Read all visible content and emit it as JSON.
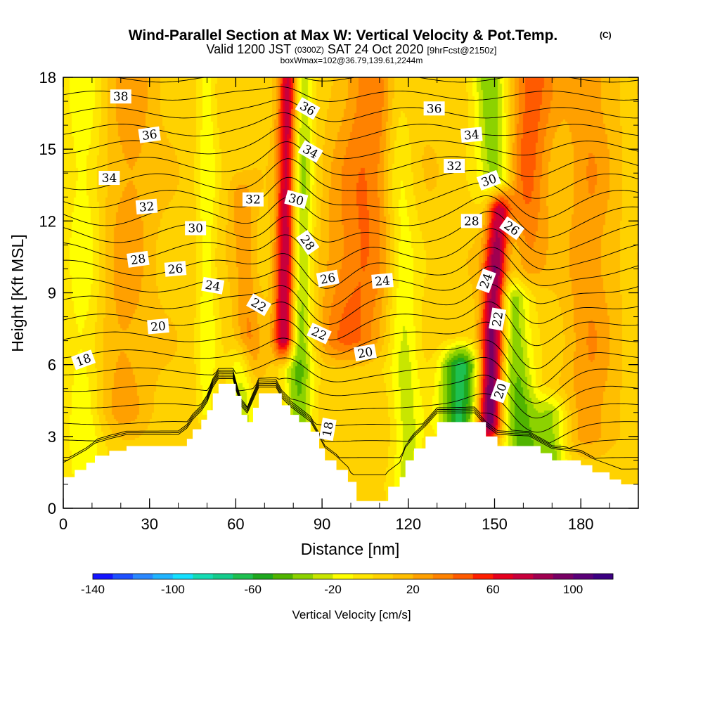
{
  "header": {
    "title": "Wind-Parallel Section at Max W: Vertical Velocity & Pot.Temp.",
    "title_suffix": "(C)",
    "valid_prefix": "Valid 1200 JST",
    "valid_utc": "(0300Z)",
    "valid_date": "SAT 24 Oct 2020",
    "forecast": "[9hrFcst@2150z]",
    "boxwmax": "boxWmax=102@36.79,139.61,2244m"
  },
  "chart_data": {
    "type": "heatmap",
    "title": "Wind-Parallel Section at Max W: Vertical Velocity & Pot.Temp.",
    "xlabel": "Distance [nm]",
    "ylabel": "Height [Kft MSL]",
    "xlim": [
      0,
      200
    ],
    "ylim": [
      0,
      18
    ],
    "x_ticks": [
      0,
      30,
      60,
      90,
      120,
      150,
      180
    ],
    "y_ticks": [
      0,
      3,
      6,
      9,
      12,
      15,
      18
    ],
    "colorbar": {
      "label": "Vertical Velocity [cm/s]",
      "range": [
        -140,
        120
      ],
      "step": 10,
      "tick_values": [
        -140,
        -100,
        -60,
        -20,
        20,
        60,
        100
      ],
      "colors": [
        "#1414ff",
        "#1e50ff",
        "#2a88ff",
        "#20b4ff",
        "#14e0ff",
        "#14dcb4",
        "#14cc8c",
        "#1ec050",
        "#1ea81e",
        "#50b400",
        "#8cd200",
        "#c8e600",
        "#ffff00",
        "#ffe600",
        "#ffd200",
        "#ffbe00",
        "#ffa000",
        "#ff8200",
        "#ff5a00",
        "#ff1e00",
        "#e6001e",
        "#c8003c",
        "#a00050",
        "#780064",
        "#5a0078",
        "#3c0082"
      ]
    },
    "terrain": [
      {
        "x": 0,
        "h": 1.3
      },
      {
        "x": 4,
        "h": 1.6
      },
      {
        "x": 8,
        "h": 1.9
      },
      {
        "x": 11,
        "h": 2.2
      },
      {
        "x": 16,
        "h": 2.4
      },
      {
        "x": 22,
        "h": 2.6
      },
      {
        "x": 40,
        "h": 2.6
      },
      {
        "x": 43,
        "h": 2.9
      },
      {
        "x": 45,
        "h": 3.3
      },
      {
        "x": 48,
        "h": 3.7
      },
      {
        "x": 50,
        "h": 4.1
      },
      {
        "x": 52,
        "h": 4.8
      },
      {
        "x": 54,
        "h": 5.2
      },
      {
        "x": 59,
        "h": 5.2
      },
      {
        "x": 60,
        "h": 4.7
      },
      {
        "x": 62,
        "h": 3.9
      },
      {
        "x": 64,
        "h": 3.6
      },
      {
        "x": 66,
        "h": 4.2
      },
      {
        "x": 68,
        "h": 4.8
      },
      {
        "x": 74,
        "h": 4.8
      },
      {
        "x": 76,
        "h": 4.3
      },
      {
        "x": 79,
        "h": 3.9
      },
      {
        "x": 82,
        "h": 3.6
      },
      {
        "x": 86,
        "h": 3.2
      },
      {
        "x": 89,
        "h": 2.5
      },
      {
        "x": 91,
        "h": 2.0
      },
      {
        "x": 95,
        "h": 1.6
      },
      {
        "x": 99,
        "h": 1.1
      },
      {
        "x": 102,
        "h": 0.3
      },
      {
        "x": 110,
        "h": 0.3
      },
      {
        "x": 113,
        "h": 0.9
      },
      {
        "x": 117,
        "h": 1.3
      },
      {
        "x": 119,
        "h": 2.0
      },
      {
        "x": 122,
        "h": 2.5
      },
      {
        "x": 126,
        "h": 3.0
      },
      {
        "x": 130,
        "h": 3.6
      },
      {
        "x": 143,
        "h": 3.6
      },
      {
        "x": 147,
        "h": 3.0
      },
      {
        "x": 151,
        "h": 2.6
      },
      {
        "x": 162,
        "h": 2.6
      },
      {
        "x": 166,
        "h": 2.3
      },
      {
        "x": 170,
        "h": 2.0
      },
      {
        "x": 180,
        "h": 1.8
      },
      {
        "x": 184,
        "h": 1.5
      },
      {
        "x": 190,
        "h": 1.2
      },
      {
        "x": 194,
        "h": 1.0
      },
      {
        "x": 200,
        "h": 1.0
      }
    ],
    "updrafts": [
      {
        "x": 77,
        "h0": 7,
        "h1": 18,
        "tilt": 1.5,
        "width": 2.5,
        "peak": 90
      },
      {
        "x": 148,
        "h0": 3.5,
        "h1": 12.5,
        "tilt": 3.5,
        "width": 3.0,
        "peak": 102
      },
      {
        "x": 158,
        "h0": 10,
        "h1": 18,
        "tilt": 5.0,
        "width": 6.0,
        "peak": 40
      },
      {
        "x": 100,
        "h0": 7,
        "h1": 18,
        "tilt": 10,
        "width": 9.0,
        "peak": 35
      },
      {
        "x": 20,
        "h0": 4,
        "h1": 18,
        "tilt": 4,
        "width": 7.0,
        "peak": 18
      },
      {
        "x": 183,
        "h0": 3,
        "h1": 18,
        "tilt": 0,
        "width": 6.0,
        "peak": 22
      },
      {
        "x": 65,
        "h0": 6,
        "h1": 13,
        "tilt": -3,
        "width": 3.0,
        "peak": 22
      }
    ],
    "downdrafts": [
      {
        "x": 82,
        "h0": 3,
        "h1": 18,
        "tilt": 0,
        "width": 3.5,
        "peak": -48
      },
      {
        "x": 138,
        "h0": 3.5,
        "h1": 6,
        "tilt": 0,
        "width": 5.0,
        "peak": -70
      },
      {
        "x": 160,
        "h0": 2.5,
        "h1": 18,
        "tilt": -12,
        "width": 4.5,
        "peak": -48
      },
      {
        "x": 120,
        "h0": 1,
        "h1": 18,
        "tilt": -4,
        "width": 4.0,
        "peak": -30
      },
      {
        "x": 7,
        "h0": 0,
        "h1": 18,
        "tilt": 0,
        "width": 5.0,
        "peak": -22
      },
      {
        "x": 170,
        "h0": 1,
        "h1": 4,
        "tilt": 0,
        "width": 4.0,
        "peak": -40
      },
      {
        "x": 62,
        "h0": 2,
        "h1": 6,
        "tilt": 0,
        "width": 3.0,
        "peak": -30
      },
      {
        "x": 50,
        "h0": 4,
        "h1": 18,
        "tilt": 0,
        "width": 2.5,
        "peak": -22
      }
    ],
    "theta_levels": {
      "min": 16,
      "max": 40,
      "step": 1,
      "labeled": [
        18,
        20,
        22,
        24,
        26,
        28,
        30,
        32,
        34,
        36,
        38
      ]
    },
    "contour_labels": [
      {
        "text": "38",
        "x": 20,
        "h": 17.2,
        "rot": 0
      },
      {
        "text": "36",
        "x": 30,
        "h": 15.6,
        "rot": -8
      },
      {
        "text": "34",
        "x": 16,
        "h": 13.8,
        "rot": 0
      },
      {
        "text": "32",
        "x": 29,
        "h": 12.6,
        "rot": -5
      },
      {
        "text": "30",
        "x": 46,
        "h": 11.7,
        "rot": 0
      },
      {
        "text": "28",
        "x": 26,
        "h": 10.4,
        "rot": -8
      },
      {
        "text": "26",
        "x": 39,
        "h": 10.0,
        "rot": -5
      },
      {
        "text": "24",
        "x": 52,
        "h": 9.3,
        "rot": 10
      },
      {
        "text": "22",
        "x": 68,
        "h": 8.5,
        "rot": 30
      },
      {
        "text": "20",
        "x": 33,
        "h": 7.6,
        "rot": -5
      },
      {
        "text": "18",
        "x": 7,
        "h": 6.2,
        "rot": -20
      },
      {
        "text": "32",
        "x": 66,
        "h": 12.9,
        "rot": 0
      },
      {
        "text": "30",
        "x": 81,
        "h": 12.9,
        "rot": 15
      },
      {
        "text": "28",
        "x": 85,
        "h": 11.1,
        "rot": 55
      },
      {
        "text": "26",
        "x": 92,
        "h": 9.6,
        "rot": -10
      },
      {
        "text": "24",
        "x": 111,
        "h": 9.5,
        "rot": -5
      },
      {
        "text": "22",
        "x": 89,
        "h": 7.3,
        "rot": 25
      },
      {
        "text": "20",
        "x": 105,
        "h": 6.5,
        "rot": -10
      },
      {
        "text": "18",
        "x": 92,
        "h": 3.3,
        "rot": -80
      },
      {
        "text": "36",
        "x": 85,
        "h": 16.7,
        "rot": 30
      },
      {
        "text": "34",
        "x": 86,
        "h": 14.9,
        "rot": 30
      },
      {
        "text": "36",
        "x": 129,
        "h": 16.7,
        "rot": 0
      },
      {
        "text": "34",
        "x": 142,
        "h": 15.6,
        "rot": -5
      },
      {
        "text": "32",
        "x": 136,
        "h": 14.3,
        "rot": 0
      },
      {
        "text": "30",
        "x": 148,
        "h": 13.7,
        "rot": -20
      },
      {
        "text": "28",
        "x": 142,
        "h": 12.0,
        "rot": 0
      },
      {
        "text": "26",
        "x": 156,
        "h": 11.7,
        "rot": 35
      },
      {
        "text": "24",
        "x": 147,
        "h": 9.5,
        "rot": -70
      },
      {
        "text": "22",
        "x": 151,
        "h": 7.9,
        "rot": -80
      },
      {
        "text": "20",
        "x": 152,
        "h": 4.9,
        "rot": -70
      }
    ]
  }
}
